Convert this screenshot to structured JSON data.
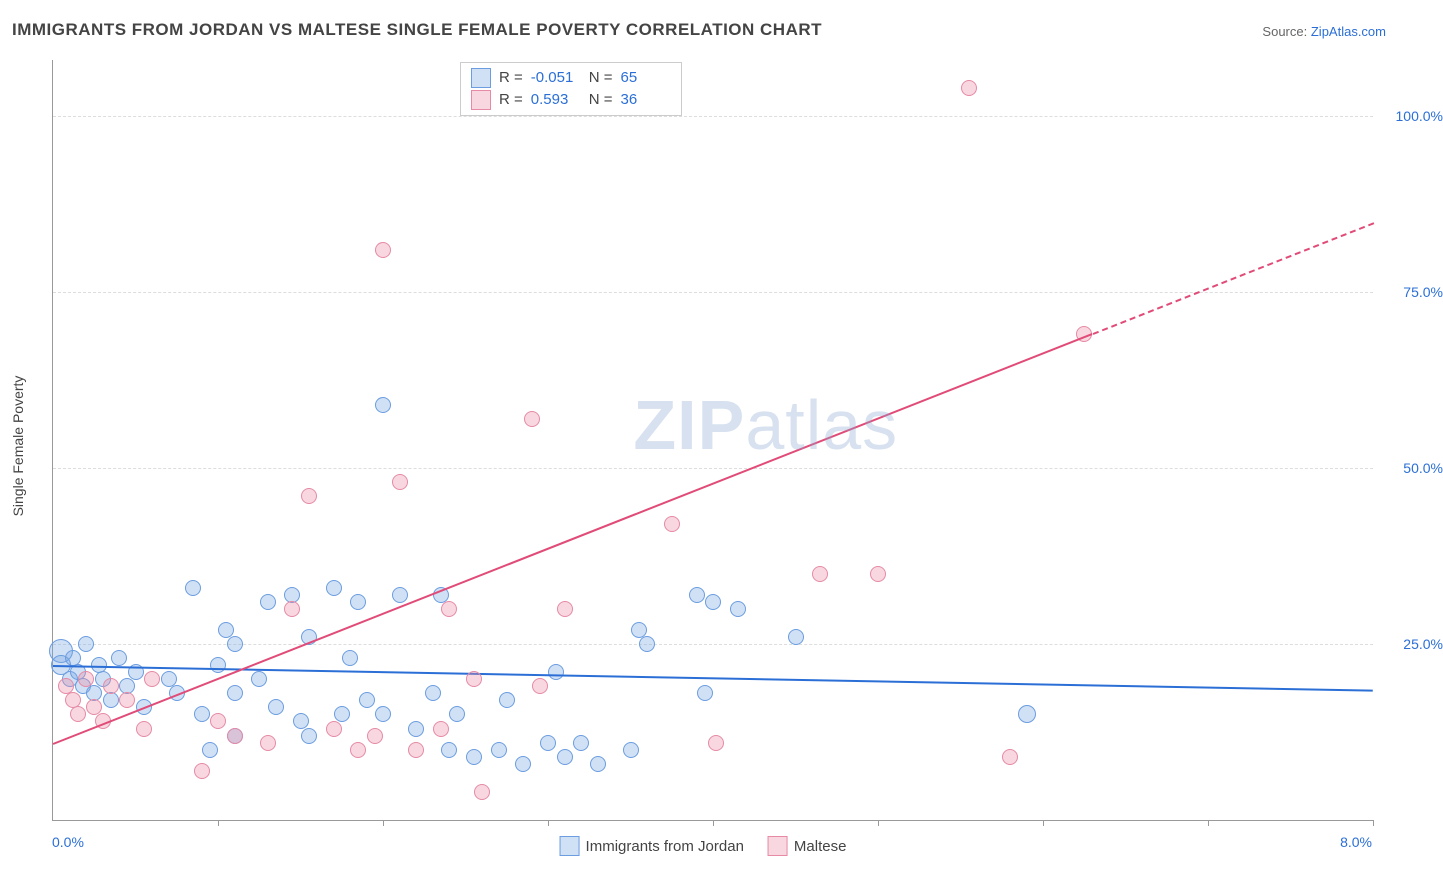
{
  "title": "IMMIGRANTS FROM JORDAN VS MALTESE SINGLE FEMALE POVERTY CORRELATION CHART",
  "source_label": "Source:",
  "source_value": "ZipAtlas.com",
  "ylabel": "Single Female Poverty",
  "watermark_bold": "ZIP",
  "watermark_rest": "atlas",
  "chart": {
    "type": "scatter",
    "xlim": [
      0.0,
      8.0
    ],
    "ylim": [
      0.0,
      108.0
    ],
    "xtick_min_label": "0.0%",
    "xtick_max_label": "8.0%",
    "ytick_labels": [
      "25.0%",
      "50.0%",
      "75.0%",
      "100.0%"
    ],
    "ytick_values": [
      25,
      50,
      75,
      100
    ],
    "xtick_minor_step": 1.0,
    "background_color": "#ffffff",
    "grid_color": "#dddddd",
    "axis_color": "#999999",
    "tick_label_color": "#2b6fd6",
    "label_fontsize": 14,
    "title_fontsize": 17
  },
  "series": [
    {
      "name": "Immigrants from Jordan",
      "fill": "rgba(120,165,225,0.35)",
      "stroke": "#6b9de0",
      "line_color": "#2b6fd6",
      "r_label": "R =",
      "r_value": "-0.051",
      "n_label": "N =",
      "n_value": "65",
      "trend": {
        "x1": 0.0,
        "y1": 22.0,
        "x2": 8.0,
        "y2": 18.5,
        "dashed_from_x": null
      },
      "marker_radius": 8,
      "points": [
        {
          "x": 0.05,
          "y": 24,
          "r": 12
        },
        {
          "x": 0.05,
          "y": 22,
          "r": 10
        },
        {
          "x": 0.1,
          "y": 20
        },
        {
          "x": 0.12,
          "y": 23
        },
        {
          "x": 0.15,
          "y": 21
        },
        {
          "x": 0.18,
          "y": 19
        },
        {
          "x": 0.2,
          "y": 25
        },
        {
          "x": 0.25,
          "y": 18
        },
        {
          "x": 0.28,
          "y": 22
        },
        {
          "x": 0.3,
          "y": 20
        },
        {
          "x": 0.35,
          "y": 17
        },
        {
          "x": 0.4,
          "y": 23
        },
        {
          "x": 0.45,
          "y": 19
        },
        {
          "x": 0.5,
          "y": 21
        },
        {
          "x": 0.55,
          "y": 16
        },
        {
          "x": 0.7,
          "y": 20
        },
        {
          "x": 0.75,
          "y": 18
        },
        {
          "x": 0.85,
          "y": 33
        },
        {
          "x": 0.9,
          "y": 15
        },
        {
          "x": 0.95,
          "y": 10
        },
        {
          "x": 1.0,
          "y": 22
        },
        {
          "x": 1.05,
          "y": 27
        },
        {
          "x": 1.1,
          "y": 25
        },
        {
          "x": 1.1,
          "y": 12
        },
        {
          "x": 1.1,
          "y": 18
        },
        {
          "x": 1.25,
          "y": 20
        },
        {
          "x": 1.3,
          "y": 31
        },
        {
          "x": 1.35,
          "y": 16
        },
        {
          "x": 1.45,
          "y": 32
        },
        {
          "x": 1.5,
          "y": 14
        },
        {
          "x": 1.55,
          "y": 26
        },
        {
          "x": 1.55,
          "y": 12
        },
        {
          "x": 1.7,
          "y": 33
        },
        {
          "x": 1.75,
          "y": 15
        },
        {
          "x": 1.8,
          "y": 23
        },
        {
          "x": 1.85,
          "y": 31
        },
        {
          "x": 1.9,
          "y": 17
        },
        {
          "x": 2.0,
          "y": 59
        },
        {
          "x": 2.0,
          "y": 15
        },
        {
          "x": 2.1,
          "y": 32
        },
        {
          "x": 2.2,
          "y": 13
        },
        {
          "x": 2.3,
          "y": 18
        },
        {
          "x": 2.35,
          "y": 32
        },
        {
          "x": 2.4,
          "y": 10
        },
        {
          "x": 2.45,
          "y": 15
        },
        {
          "x": 2.55,
          "y": 9
        },
        {
          "x": 2.7,
          "y": 10
        },
        {
          "x": 2.75,
          "y": 17
        },
        {
          "x": 2.85,
          "y": 8
        },
        {
          "x": 3.0,
          "y": 11
        },
        {
          "x": 3.05,
          "y": 21
        },
        {
          "x": 3.1,
          "y": 9
        },
        {
          "x": 3.2,
          "y": 11
        },
        {
          "x": 3.3,
          "y": 8
        },
        {
          "x": 3.5,
          "y": 10
        },
        {
          "x": 3.55,
          "y": 27
        },
        {
          "x": 3.6,
          "y": 25
        },
        {
          "x": 3.9,
          "y": 32
        },
        {
          "x": 3.95,
          "y": 18
        },
        {
          "x": 4.0,
          "y": 31
        },
        {
          "x": 4.15,
          "y": 30
        },
        {
          "x": 4.5,
          "y": 26
        },
        {
          "x": 5.9,
          "y": 15,
          "r": 9
        }
      ]
    },
    {
      "name": "Maltese",
      "fill": "rgba(235,140,165,0.35)",
      "stroke": "#e68aa5",
      "line_color": "#e14b78",
      "r_label": "R =",
      "r_value": "0.593",
      "n_label": "N =",
      "n_value": "36",
      "trend": {
        "x1": 0.0,
        "y1": 11.0,
        "x2": 8.0,
        "y2": 85.0,
        "dashed_from_x": 6.3
      },
      "marker_radius": 8,
      "points": [
        {
          "x": 0.08,
          "y": 19
        },
        {
          "x": 0.12,
          "y": 17
        },
        {
          "x": 0.15,
          "y": 15
        },
        {
          "x": 0.2,
          "y": 20
        },
        {
          "x": 0.25,
          "y": 16
        },
        {
          "x": 0.3,
          "y": 14
        },
        {
          "x": 0.35,
          "y": 19
        },
        {
          "x": 0.45,
          "y": 17
        },
        {
          "x": 0.55,
          "y": 13
        },
        {
          "x": 0.6,
          "y": 20
        },
        {
          "x": 0.9,
          "y": 7
        },
        {
          "x": 1.0,
          "y": 14
        },
        {
          "x": 1.1,
          "y": 12
        },
        {
          "x": 1.3,
          "y": 11
        },
        {
          "x": 1.45,
          "y": 30
        },
        {
          "x": 1.55,
          "y": 46
        },
        {
          "x": 1.7,
          "y": 13
        },
        {
          "x": 1.85,
          "y": 10
        },
        {
          "x": 1.95,
          "y": 12
        },
        {
          "x": 2.0,
          "y": 81
        },
        {
          "x": 2.1,
          "y": 48
        },
        {
          "x": 2.2,
          "y": 10
        },
        {
          "x": 2.35,
          "y": 13
        },
        {
          "x": 2.4,
          "y": 30
        },
        {
          "x": 2.55,
          "y": 20
        },
        {
          "x": 2.6,
          "y": 4
        },
        {
          "x": 2.9,
          "y": 57
        },
        {
          "x": 2.95,
          "y": 19
        },
        {
          "x": 3.1,
          "y": 30
        },
        {
          "x": 3.75,
          "y": 42
        },
        {
          "x": 4.02,
          "y": 11
        },
        {
          "x": 4.65,
          "y": 35
        },
        {
          "x": 5.0,
          "y": 35
        },
        {
          "x": 5.55,
          "y": 104
        },
        {
          "x": 5.8,
          "y": 9
        },
        {
          "x": 6.25,
          "y": 69
        }
      ]
    }
  ],
  "legend_bottom": [
    {
      "label": "Immigrants from Jordan",
      "fill": "rgba(120,165,225,0.35)",
      "stroke": "#6b9de0"
    },
    {
      "label": "Maltese",
      "fill": "rgba(235,140,165,0.35)",
      "stroke": "#e68aa5"
    }
  ]
}
